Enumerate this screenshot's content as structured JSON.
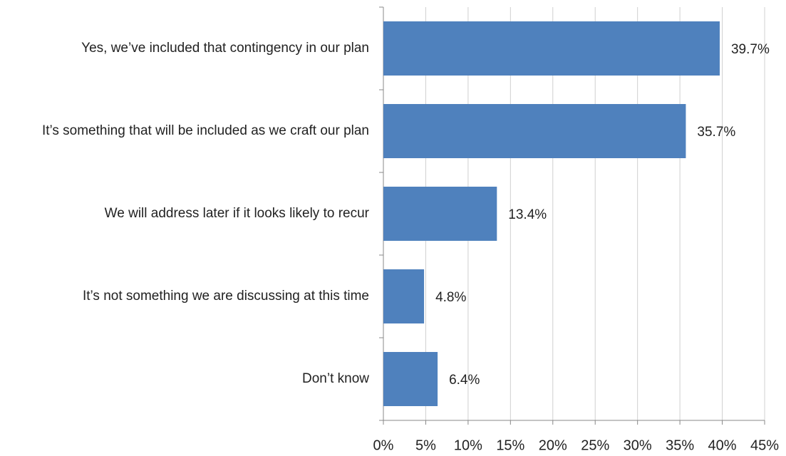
{
  "chart_data": {
    "type": "bar",
    "orientation": "horizontal",
    "categories": [
      "Yes, we’ve included that contingency in our plan",
      "It’s something that will be included as we craft our plan",
      "We will address later if it looks likely to recur",
      "It’s not something we are discussing at this time",
      "Don’t know"
    ],
    "values": [
      39.7,
      35.7,
      13.4,
      4.8,
      6.4
    ],
    "value_labels": [
      "39.7%",
      "35.7%",
      "13.4%",
      "4.8%",
      "6.4%"
    ],
    "color": "#4f81bd",
    "xlim": [
      0,
      45
    ],
    "xticks": [
      {
        "value": 0,
        "label": "0%"
      },
      {
        "value": 5,
        "label": "5%"
      },
      {
        "value": 10,
        "label": "10%"
      },
      {
        "value": 15,
        "label": "15%"
      },
      {
        "value": 20,
        "label": "20%"
      },
      {
        "value": 25,
        "label": "25%"
      },
      {
        "value": 30,
        "label": "30%"
      },
      {
        "value": 35,
        "label": "35%"
      },
      {
        "value": 40,
        "label": "40%"
      },
      {
        "value": 45,
        "label": "45%"
      }
    ],
    "grid": true
  }
}
